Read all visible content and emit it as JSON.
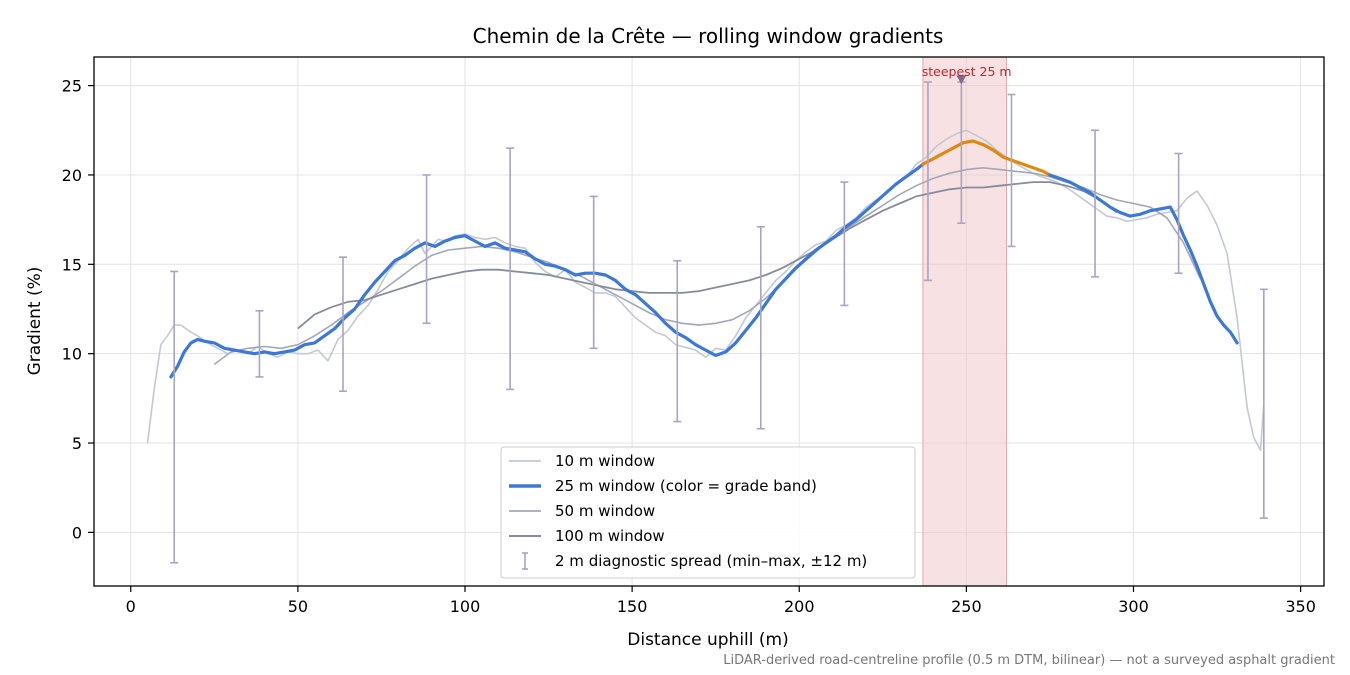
{
  "chart_data": {
    "type": "line",
    "title": "Chemin de la Crête — rolling window gradients",
    "xlabel": "Distance uphill (m)",
    "ylabel": "Gradient (%)",
    "xlim": [
      -11,
      357
    ],
    "ylim": [
      -3.0,
      26.6
    ],
    "xticks": [
      0,
      50,
      100,
      150,
      200,
      250,
      300,
      350
    ],
    "yticks": [
      0,
      5,
      10,
      15,
      20,
      25
    ],
    "grid": true,
    "legend_position": "bottom-center",
    "footnote": "LiDAR-derived road-centreline profile (0.5 m DTM, bilinear) — not a surveyed asphalt gradient",
    "highlight": {
      "label": "steepest 25 m",
      "x_start": 237,
      "x_end": 262,
      "marker_x": 248.5,
      "marker_y": 25.3,
      "color": "#c0282d"
    },
    "legend": [
      {
        "key": "w10",
        "label": "10 m window"
      },
      {
        "key": "w25",
        "label": "25 m window (color = grade band)"
      },
      {
        "key": "w50",
        "label": "50 m window"
      },
      {
        "key": "w100",
        "label": "100 m window"
      },
      {
        "key": "err",
        "label": "2 m diagnostic spread (min–max, ±12 m)"
      }
    ],
    "series": [
      {
        "key": "w10",
        "name": "10 m window",
        "color": "#c3c9d3",
        "width": 1.6,
        "x": [
          5,
          7,
          9,
          11,
          13,
          15,
          18,
          20,
          23,
          26,
          29,
          32,
          35,
          38,
          41,
          44,
          47,
          50,
          53,
          56,
          59,
          62,
          65,
          68,
          71,
          74,
          77,
          80,
          83,
          86,
          88,
          90,
          92,
          94,
          97,
          100,
          103,
          106,
          109,
          112,
          115,
          118,
          121,
          124,
          127,
          130,
          133,
          136,
          139,
          142,
          145,
          148,
          151,
          154,
          157,
          160,
          163,
          165,
          167,
          169,
          172,
          175,
          178,
          181,
          184,
          187,
          190,
          193,
          196,
          199,
          202,
          205,
          208,
          211,
          214,
          217,
          220,
          223,
          226,
          229,
          232,
          235,
          238,
          241,
          244,
          247,
          250,
          253,
          256,
          259,
          262,
          265,
          268,
          271,
          274,
          277,
          280,
          283,
          286,
          289,
          292,
          295,
          298,
          301,
          304,
          307,
          310,
          313,
          316,
          319,
          322,
          325,
          328,
          331,
          334,
          336,
          338,
          339
        ],
        "y": [
          5.0,
          8.0,
          10.5,
          11.0,
          11.6,
          11.6,
          11.2,
          11.0,
          10.6,
          10.3,
          10.0,
          10.2,
          10.0,
          10.4,
          10.0,
          9.8,
          10.1,
          10.0,
          10.0,
          10.2,
          9.6,
          10.8,
          11.3,
          12.1,
          12.7,
          13.6,
          14.6,
          15.2,
          15.9,
          16.4,
          15.6,
          16.0,
          16.4,
          16.3,
          16.6,
          16.7,
          16.5,
          16.4,
          16.5,
          16.2,
          16.0,
          15.9,
          15.1,
          14.6,
          14.3,
          14.7,
          14.0,
          13.7,
          13.4,
          13.4,
          13.2,
          12.6,
          12.0,
          11.6,
          11.2,
          11.0,
          10.5,
          10.4,
          10.3,
          10.2,
          9.8,
          10.3,
          10.2,
          11.0,
          12.0,
          12.7,
          13.4,
          14.1,
          14.6,
          15.2,
          15.7,
          16.1,
          16.3,
          16.9,
          17.2,
          17.6,
          18.2,
          18.6,
          19.0,
          19.5,
          19.9,
          20.6,
          21.0,
          21.6,
          22.0,
          22.3,
          22.5,
          22.2,
          21.9,
          21.4,
          21.0,
          20.6,
          20.3,
          20.0,
          19.8,
          19.6,
          19.3,
          18.9,
          18.5,
          18.1,
          17.7,
          17.6,
          17.4,
          17.5,
          17.6,
          17.8,
          17.9,
          18.0,
          18.7,
          19.1,
          18.3,
          17.2,
          15.6,
          12.0,
          7.0,
          5.3,
          4.6,
          7.2
        ],
        "stride": null
      },
      {
        "key": "w50",
        "name": "50 m window",
        "color": "#a2a8b8",
        "width": 1.6,
        "x": [
          25,
          30,
          35,
          40,
          45,
          50,
          55,
          60,
          65,
          70,
          75,
          80,
          85,
          90,
          95,
          100,
          105,
          110,
          115,
          120,
          125,
          130,
          135,
          140,
          145,
          150,
          155,
          160,
          165,
          170,
          175,
          180,
          185,
          190,
          195,
          200,
          205,
          210,
          215,
          220,
          225,
          230,
          235,
          240,
          245,
          250,
          255,
          260,
          265,
          270,
          275,
          280,
          285,
          290,
          295,
          300,
          305,
          310,
          315,
          320
        ],
        "y": [
          9.4,
          10.1,
          10.3,
          10.4,
          10.3,
          10.5,
          11.0,
          11.6,
          12.3,
          12.9,
          13.5,
          14.2,
          14.9,
          15.5,
          15.8,
          15.9,
          16.0,
          15.9,
          15.7,
          15.4,
          15.1,
          14.7,
          14.3,
          13.8,
          13.3,
          12.8,
          12.3,
          11.9,
          11.7,
          11.6,
          11.7,
          11.9,
          12.4,
          13.1,
          14.0,
          14.9,
          15.7,
          16.5,
          17.1,
          17.7,
          18.3,
          18.9,
          19.4,
          19.8,
          20.1,
          20.3,
          20.4,
          20.3,
          20.2,
          20.1,
          19.9,
          19.6,
          19.3,
          18.9,
          18.6,
          18.4,
          18.2,
          17.6,
          16.2,
          14.2
        ]
      },
      {
        "key": "w100",
        "name": "100 m window",
        "color": "#858d9c",
        "width": 1.8,
        "x": [
          50,
          55,
          60,
          65,
          70,
          75,
          80,
          85,
          90,
          95,
          100,
          105,
          110,
          115,
          120,
          125,
          130,
          135,
          140,
          145,
          150,
          155,
          160,
          165,
          170,
          175,
          180,
          185,
          190,
          195,
          200,
          205,
          210,
          215,
          220,
          225,
          230,
          235,
          240,
          245,
          250,
          255,
          260,
          265,
          270,
          275,
          280,
          285,
          290,
          295
        ],
        "y": [
          11.4,
          12.2,
          12.6,
          12.9,
          13.0,
          13.3,
          13.6,
          13.9,
          14.2,
          14.4,
          14.6,
          14.7,
          14.7,
          14.6,
          14.5,
          14.4,
          14.2,
          14.0,
          13.8,
          13.6,
          13.5,
          13.4,
          13.4,
          13.4,
          13.5,
          13.7,
          13.9,
          14.1,
          14.4,
          14.8,
          15.3,
          15.8,
          16.4,
          17.0,
          17.5,
          18.0,
          18.4,
          18.8,
          19.0,
          19.2,
          19.3,
          19.3,
          19.4,
          19.5,
          19.6,
          19.6,
          19.4,
          19.1,
          18.6,
          17.9
        ]
      },
      {
        "key": "w25",
        "name": "25 m window (color = grade band)",
        "color": "#3b78d8",
        "width": 3.2,
        "highlight_color": "#e0890e",
        "highlight_range": [
          237,
          275
        ],
        "x": [
          12,
          14,
          16,
          18,
          20,
          22,
          25,
          28,
          31,
          34,
          37,
          40,
          43,
          46,
          49,
          52,
          55,
          58,
          61,
          64,
          67,
          70,
          73,
          76,
          79,
          82,
          85,
          88,
          91,
          94,
          97,
          100,
          103,
          106,
          109,
          112,
          115,
          118,
          121,
          124,
          127,
          130,
          133,
          136,
          139,
          142,
          145,
          148,
          151,
          154,
          157,
          160,
          163,
          166,
          169,
          172,
          175,
          178,
          181,
          184,
          187,
          190,
          193,
          196,
          199,
          202,
          205,
          208,
          211,
          214,
          217,
          220,
          223,
          226,
          229,
          232,
          235,
          237,
          240,
          243,
          246,
          249,
          252,
          255,
          258,
          261,
          264,
          267,
          270,
          273,
          275,
          278,
          281,
          284,
          287,
          290,
          293,
          296,
          299,
          302,
          305,
          308,
          311,
          313,
          315,
          317,
          319,
          321,
          323,
          325,
          327,
          329,
          331
        ],
        "y": [
          8.7,
          9.3,
          10.1,
          10.6,
          10.8,
          10.7,
          10.6,
          10.3,
          10.2,
          10.1,
          10.0,
          10.1,
          10.0,
          10.1,
          10.2,
          10.5,
          10.6,
          11.0,
          11.4,
          12.0,
          12.5,
          13.3,
          14.0,
          14.6,
          15.2,
          15.5,
          15.9,
          16.2,
          16.0,
          16.3,
          16.5,
          16.6,
          16.3,
          16.0,
          16.2,
          15.9,
          15.8,
          15.7,
          15.3,
          15.0,
          14.9,
          14.7,
          14.4,
          14.5,
          14.5,
          14.4,
          14.1,
          13.6,
          13.3,
          12.8,
          12.3,
          11.7,
          11.2,
          10.9,
          10.5,
          10.2,
          9.9,
          10.1,
          10.6,
          11.3,
          12.0,
          12.8,
          13.6,
          14.2,
          14.8,
          15.3,
          15.8,
          16.2,
          16.6,
          17.1,
          17.5,
          18.0,
          18.5,
          19.0,
          19.5,
          19.9,
          20.3,
          20.6,
          20.9,
          21.2,
          21.5,
          21.8,
          21.9,
          21.7,
          21.4,
          21.0,
          20.8,
          20.6,
          20.4,
          20.2,
          20.0,
          19.8,
          19.6,
          19.3,
          19.0,
          18.6,
          18.2,
          17.9,
          17.7,
          17.8,
          18.0,
          18.1,
          18.2,
          17.5,
          16.6,
          15.8,
          14.9,
          13.9,
          12.9,
          12.1,
          11.6,
          11.2,
          10.6
        ]
      }
    ],
    "error_bars": {
      "name": "2 m diagnostic spread (min–max, ±12 m)",
      "color": "#a7a4c4",
      "x": [
        13,
        38.5,
        63.5,
        88.5,
        113.5,
        138.5,
        163.5,
        188.5,
        213.5,
        238.5,
        248.5,
        263.5,
        288.5,
        313.5,
        339
      ],
      "min": [
        -1.7,
        8.7,
        7.9,
        11.7,
        8.0,
        10.3,
        6.2,
        5.8,
        12.7,
        14.1,
        17.3,
        16.0,
        14.3,
        14.5,
        0.8
      ],
      "max": [
        14.6,
        12.4,
        15.4,
        20.0,
        21.5,
        18.8,
        15.2,
        17.1,
        19.6,
        25.2,
        25.2,
        24.5,
        22.5,
        21.2,
        13.6
      ]
    }
  }
}
